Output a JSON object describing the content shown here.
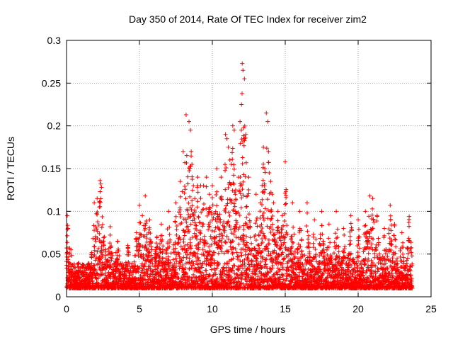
{
  "chart_data": {
    "type": "scatter",
    "title": "Day 350 of 2014, Rate Of TEC Index for receiver zim2",
    "xlabel": "GPS time / hours",
    "ylabel": "ROTI / TECUs",
    "xlim": [
      0,
      25
    ],
    "ylim": [
      0,
      0.3
    ],
    "xticks": [
      0,
      5,
      10,
      15,
      20,
      25
    ],
    "xtick_labels": [
      "0",
      "5",
      "10",
      "15",
      "20",
      "25"
    ],
    "yticks": [
      0,
      0.05,
      0.1,
      0.15,
      0.2,
      0.25,
      0.3
    ],
    "ytick_labels": [
      "0",
      "0.05",
      "0.1",
      "0.15",
      "0.2",
      "0.25",
      "0.3"
    ],
    "grid": true,
    "marker": "+",
    "color": "#ff0000",
    "series": [
      {
        "name": "ROTI",
        "x": [
          0.05,
          0.1,
          0.15,
          0.2,
          0.1,
          0.3,
          1.9,
          2.1,
          2.3,
          2.35,
          2.4,
          2.6,
          3.0,
          3.5,
          4.2,
          4.8,
          5.0,
          5.2,
          5.4,
          5.7,
          6.2,
          6.5,
          7.0,
          7.5,
          7.8,
          8.0,
          8.2,
          8.4,
          8.5,
          8.55,
          8.6,
          8.7,
          8.8,
          9.0,
          9.2,
          9.4,
          9.6,
          9.8,
          10.0,
          10.3,
          10.6,
          10.9,
          11.0,
          11.1,
          11.2,
          11.3,
          11.4,
          11.5,
          11.6,
          11.8,
          11.9,
          12.0,
          12.05,
          12.1,
          12.2,
          12.3,
          12.5,
          13.0,
          13.3,
          13.5,
          13.6,
          13.7,
          13.8,
          13.85,
          13.9,
          14.0,
          14.1,
          14.2,
          14.5,
          14.8,
          15.0,
          15.5,
          16.0,
          16.5,
          17.0,
          17.5,
          18.0,
          18.5,
          19.0,
          19.5,
          20.0,
          20.5,
          20.8,
          21.0,
          21.3,
          21.8,
          22.2,
          22.5,
          23.0,
          23.5
        ],
        "y": [
          0.095,
          0.08,
          0.035,
          0.03,
          0.02,
          0.055,
          0.11,
          0.115,
          0.136,
          0.132,
          0.128,
          0.07,
          0.082,
          0.065,
          0.06,
          0.075,
          0.107,
          0.095,
          0.118,
          0.09,
          0.07,
          0.085,
          0.1,
          0.11,
          0.135,
          0.17,
          0.213,
          0.205,
          0.195,
          0.17,
          0.155,
          0.13,
          0.115,
          0.14,
          0.13,
          0.13,
          0.14,
          0.12,
          0.13,
          0.15,
          0.14,
          0.19,
          0.185,
          0.175,
          0.16,
          0.155,
          0.2,
          0.195,
          0.125,
          0.14,
          0.205,
          0.225,
          0.273,
          0.265,
          0.255,
          0.19,
          0.14,
          0.12,
          0.11,
          0.175,
          0.15,
          0.215,
          0.205,
          0.17,
          0.145,
          0.135,
          0.12,
          0.11,
          0.1,
          0.095,
          0.158,
          0.11,
          0.1,
          0.11,
          0.09,
          0.1,
          0.085,
          0.1,
          0.08,
          0.095,
          0.09,
          0.1,
          0.118,
          0.115,
          0.095,
          0.08,
          0.107,
          0.085,
          0.075,
          0.094
        ]
      }
    ],
    "baseline_level": 0.01
  }
}
